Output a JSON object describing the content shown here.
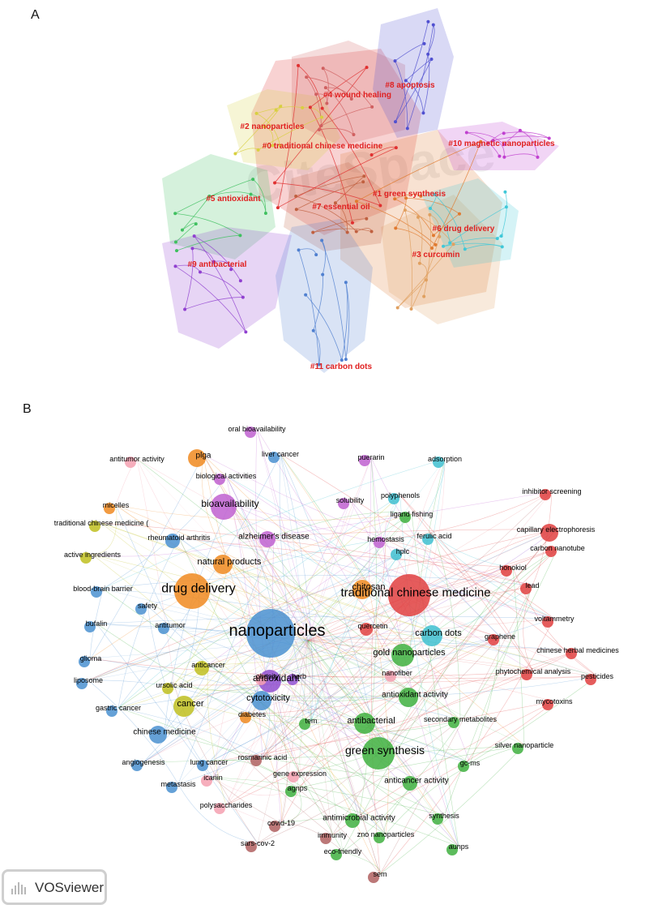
{
  "panel_a": {
    "label": "A",
    "watermark": "CiteSpace",
    "clusters": [
      {
        "label": "#0 traditional chinese medicine",
        "color": "#e03030"
      },
      {
        "label": "#1 green synthesis",
        "color": "#e07a30"
      },
      {
        "label": "#2 nanoparticles",
        "color": "#d8d040"
      },
      {
        "label": "#3 curcumin",
        "color": "#e0a060"
      },
      {
        "label": "#4 wound healing",
        "color": "#d06060"
      },
      {
        "label": "#5 antioxidant",
        "color": "#40c060"
      },
      {
        "label": "#6 drug delivery",
        "color": "#40c8d8"
      },
      {
        "label": "#7 essential oil",
        "color": "#c06040"
      },
      {
        "label": "#8 apoptosis",
        "color": "#5050d0"
      },
      {
        "label": "#9 antibacterial",
        "color": "#9040d0"
      },
      {
        "label": "#10 magnetic nanoparticles",
        "color": "#c040d0"
      },
      {
        "label": "#11 carbon dots",
        "color": "#5080d0"
      }
    ]
  },
  "panel_b": {
    "label": "B",
    "terms": [
      {
        "text": "nanoparticles",
        "color": "#4a90d0"
      },
      {
        "text": "traditional chinese medicine",
        "color": "#e04040"
      },
      {
        "text": "drug delivery",
        "color": "#f08a20"
      },
      {
        "text": "green synthesis",
        "color": "#40b040"
      },
      {
        "text": "bioavailability",
        "color": "#c060d0"
      },
      {
        "text": "antioxidant",
        "color": "#9050d0"
      },
      {
        "text": "gold nanoparticles",
        "color": "#40b040"
      },
      {
        "text": "carbon dots",
        "color": "#40c0d0"
      },
      {
        "text": "antibacterial",
        "color": "#40b040"
      },
      {
        "text": "cancer",
        "color": "#c0c020"
      },
      {
        "text": "cytotoxicity",
        "color": "#4a90d0"
      },
      {
        "text": "chitosan",
        "color": "#f08a20"
      },
      {
        "text": "natural products",
        "color": "#f08a20"
      },
      {
        "text": "antioxidant activity",
        "color": "#40b040"
      },
      {
        "text": "capillary electrophoresis",
        "color": "#e04040"
      },
      {
        "text": "alzheimer's disease",
        "color": "#c060d0"
      },
      {
        "text": "chinese medicine",
        "color": "#4a90d0"
      },
      {
        "text": "plga",
        "color": "#f08a20"
      },
      {
        "text": "antimicrobial activity",
        "color": "#40b040"
      },
      {
        "text": "anticancer activity",
        "color": "#40b040"
      },
      {
        "text": "rheumatoid arthritis",
        "color": "#4a90d0"
      },
      {
        "text": "anticancer",
        "color": "#c0c020"
      },
      {
        "text": "quercetin",
        "color": "#e04040"
      },
      {
        "text": "oral bioavailability",
        "color": "#c060d0"
      },
      {
        "text": "liver cancer",
        "color": "#4a90d0"
      },
      {
        "text": "adsorption",
        "color": "#40c0d0"
      },
      {
        "text": "antitumor activity",
        "color": "#f4a0b0"
      },
      {
        "text": "biological activities",
        "color": "#c060d0"
      },
      {
        "text": "puerarin",
        "color": "#c060d0"
      },
      {
        "text": "polyphenols",
        "color": "#40c0d0"
      },
      {
        "text": "inhibitor screening",
        "color": "#e04040"
      },
      {
        "text": "micelles",
        "color": "#f08a20"
      },
      {
        "text": "solubility",
        "color": "#c060d0"
      },
      {
        "text": "traditional chinese medicine (",
        "color": "#c0c020"
      },
      {
        "text": "ligand fishing",
        "color": "#40b040"
      },
      {
        "text": "ferulic acid",
        "color": "#40c0d0"
      },
      {
        "text": "hemostasis",
        "color": "#c060d0"
      },
      {
        "text": "carbon nanotube",
        "color": "#e04040"
      },
      {
        "text": "hplc",
        "color": "#40c0d0"
      },
      {
        "text": "active ingredients",
        "color": "#c0c020"
      },
      {
        "text": "honokiol",
        "color": "#e04040"
      },
      {
        "text": "blood-brain barrier",
        "color": "#4a90d0"
      },
      {
        "text": "lead",
        "color": "#e04040"
      },
      {
        "text": "safety",
        "color": "#4a90d0"
      },
      {
        "text": "bufalin",
        "color": "#4a90d0"
      },
      {
        "text": "voltammetry",
        "color": "#e04040"
      },
      {
        "text": "antitumor",
        "color": "#4a90d0"
      },
      {
        "text": "graphene",
        "color": "#e04040"
      },
      {
        "text": "obesity",
        "color": "#f4a0b0"
      },
      {
        "text": "herb",
        "color": "#9050d0"
      },
      {
        "text": "chinese herbal medicines",
        "color": "#e04040"
      },
      {
        "text": "glioma",
        "color": "#4a90d0"
      },
      {
        "text": "phytochemical analysis",
        "color": "#e04040"
      },
      {
        "text": "pesticides",
        "color": "#e04040"
      },
      {
        "text": "liposome",
        "color": "#4a90d0"
      },
      {
        "text": "nanofiber",
        "color": "#f4a0b0"
      },
      {
        "text": "ursolic acid",
        "color": "#c0c020"
      },
      {
        "text": "mycotoxins",
        "color": "#e04040"
      },
      {
        "text": "gastric cancer",
        "color": "#4a90d0"
      },
      {
        "text": "tem",
        "color": "#40b040"
      },
      {
        "text": "secondary metabolites",
        "color": "#40b040"
      },
      {
        "text": "diabetes",
        "color": "#f08a20"
      },
      {
        "text": "silver nanoparticle",
        "color": "#40b040"
      },
      {
        "text": "rosmarinic acid",
        "color": "#b06060"
      },
      {
        "text": "angiogenesis",
        "color": "#4a90d0"
      },
      {
        "text": "lung cancer",
        "color": "#4a90d0"
      },
      {
        "text": "gene expression",
        "color": "#f4a0b0"
      },
      {
        "text": "gc-ms",
        "color": "#40b040"
      },
      {
        "text": "metastasis",
        "color": "#4a90d0"
      },
      {
        "text": "icariin",
        "color": "#f4a0b0"
      },
      {
        "text": "agnps",
        "color": "#40b040"
      },
      {
        "text": "polysaccharides",
        "color": "#f4a0b0"
      },
      {
        "text": "synthesis",
        "color": "#40b040"
      },
      {
        "text": "covid-19",
        "color": "#b06060"
      },
      {
        "text": "immunity",
        "color": "#b06060"
      },
      {
        "text": "zno nanoparticles",
        "color": "#40b040"
      },
      {
        "text": "sars-cov-2",
        "color": "#b06060"
      },
      {
        "text": "aunps",
        "color": "#40b040"
      },
      {
        "text": "eco-friendly",
        "color": "#40b040"
      },
      {
        "text": "sem",
        "color": "#b06060"
      }
    ]
  },
  "badge": {
    "text": "VOSviewer"
  }
}
